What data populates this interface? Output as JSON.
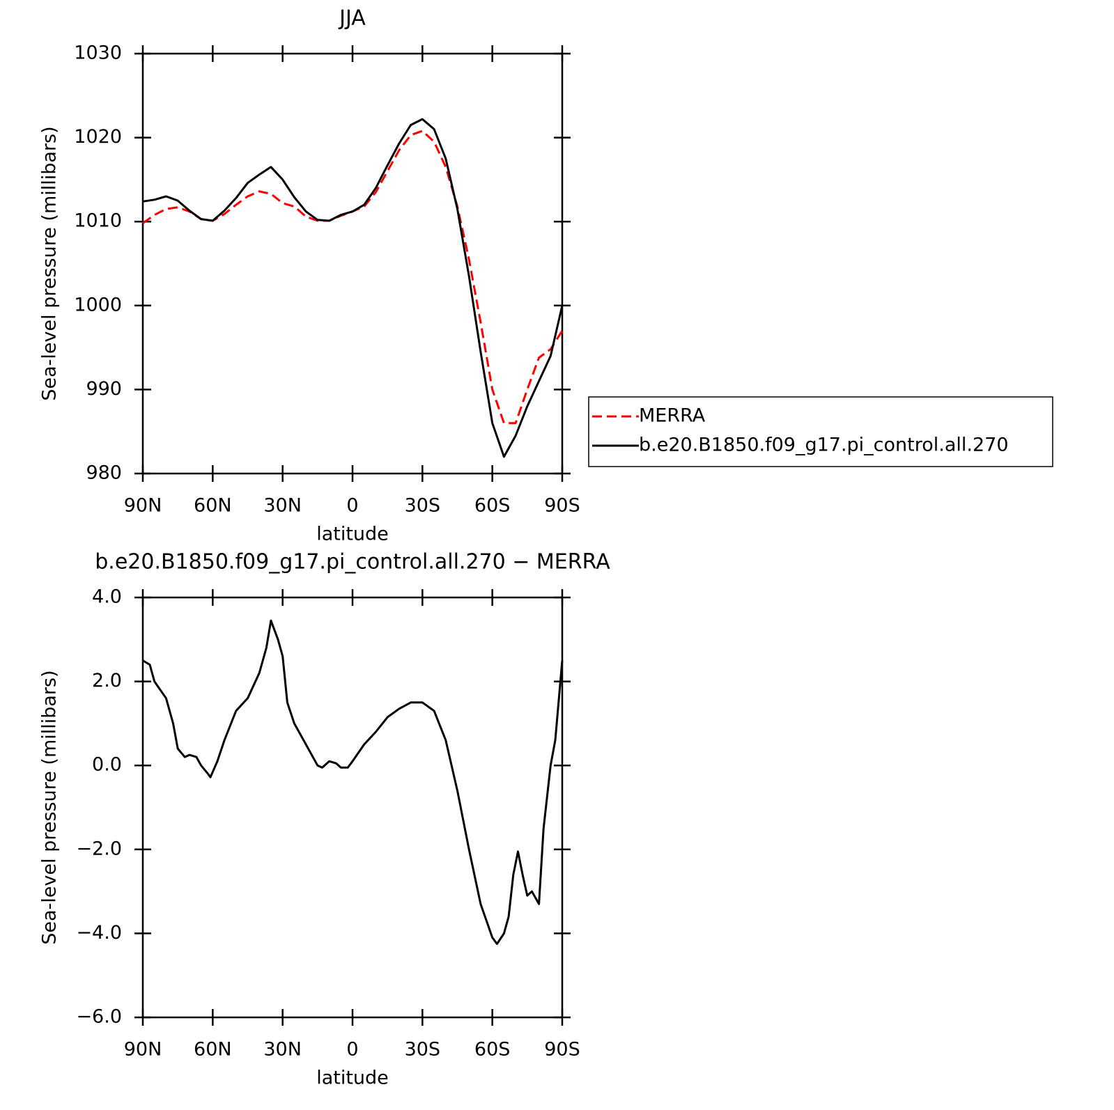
{
  "chart_data": [
    {
      "type": "line",
      "title": "JJA",
      "xlabel": "latitude",
      "ylabel": "Sea-level pressure (millibars)",
      "x": [
        90,
        85,
        80,
        75,
        70,
        65,
        60,
        55,
        50,
        45,
        40,
        35,
        30,
        25,
        20,
        15,
        10,
        5,
        0,
        -5,
        -10,
        -15,
        -20,
        -25,
        -30,
        -35,
        -40,
        -45,
        -50,
        -55,
        -60,
        -65,
        -70,
        -75,
        -80,
        -85,
        -90
      ],
      "series": [
        {
          "name": "MERRA",
          "color": "#ff0000",
          "dashed": true,
          "values": [
            1009.8,
            1010.8,
            1011.5,
            1011.7,
            1011.2,
            1010.3,
            1010.1,
            1010.9,
            1012.0,
            1013.0,
            1013.6,
            1013.3,
            1012.2,
            1011.8,
            1010.6,
            1010.1,
            1010.1,
            1010.7,
            1011.2,
            1011.8,
            1013.5,
            1016.0,
            1018.5,
            1020.3,
            1020.8,
            1019.5,
            1016.5,
            1011.8,
            1005.5,
            998.0,
            990.0,
            986.0,
            986.0,
            990.0,
            993.8,
            994.8,
            997.0
          ]
        },
        {
          "name": "b.e20.B1850.f09_g17.pi_control.all.270",
          "color": "#000000",
          "dashed": false,
          "values": [
            1012.4,
            1012.6,
            1013.0,
            1012.5,
            1011.3,
            1010.3,
            1010.1,
            1011.3,
            1012.8,
            1014.6,
            1015.6,
            1016.5,
            1015.0,
            1012.9,
            1011.2,
            1010.2,
            1010.1,
            1010.8,
            1011.2,
            1012.0,
            1014.0,
            1016.7,
            1019.3,
            1021.5,
            1022.2,
            1021.0,
            1017.5,
            1011.5,
            1003.5,
            994.5,
            986.0,
            982.0,
            984.5,
            988.0,
            991.0,
            994.0,
            1000.0
          ]
        }
      ],
      "xlim": [
        90,
        -90
      ],
      "xticks": [
        {
          "value": 90,
          "label": "90N"
        },
        {
          "value": 60,
          "label": "60N"
        },
        {
          "value": 30,
          "label": "30N"
        },
        0,
        {
          "value": -30,
          "label": "30S"
        },
        {
          "value": -60,
          "label": "60S"
        },
        {
          "value": -90,
          "label": "90S"
        }
      ],
      "ylim": [
        980,
        1030
      ],
      "yticks": [
        980,
        990,
        1000,
        1010,
        1020,
        1030
      ]
    },
    {
      "type": "line",
      "title": "b.e20.B1850.f09_g17.pi_control.all.270 − MERRA",
      "xlabel": "latitude",
      "ylabel": "Sea-level pressure (millibars)",
      "x": [
        90,
        87,
        85,
        80,
        77,
        75,
        72,
        70,
        67,
        65,
        62,
        61,
        58,
        55,
        50,
        45,
        40,
        37,
        35,
        32,
        30,
        28,
        25,
        20,
        15,
        13,
        10,
        7,
        5,
        2,
        0,
        -5,
        -10,
        -15,
        -20,
        -25,
        -30,
        -35,
        -40,
        -45,
        -50,
        -55,
        -60,
        -62,
        -65,
        -67,
        -69,
        -71,
        -73,
        -75,
        -77,
        -80,
        -82,
        -85,
        -87,
        -90
      ],
      "values": [
        2.5,
        2.4,
        2.0,
        1.6,
        1.0,
        0.4,
        0.2,
        0.25,
        0.2,
        0.0,
        -0.2,
        -0.28,
        0.1,
        0.6,
        1.3,
        1.6,
        2.2,
        2.8,
        3.45,
        3.0,
        2.6,
        1.5,
        1.0,
        0.5,
        0.0,
        -0.05,
        0.1,
        0.05,
        -0.05,
        -0.05,
        0.1,
        0.5,
        0.8,
        1.15,
        1.35,
        1.5,
        1.5,
        1.3,
        0.6,
        -0.6,
        -2.0,
        -3.3,
        -4.1,
        -4.25,
        -4.0,
        -3.6,
        -2.6,
        -2.05,
        -2.6,
        -3.1,
        -3.0,
        -3.3,
        -1.5,
        0.0,
        0.6,
        2.5
      ],
      "color": "#000000",
      "xlim": [
        90,
        -90
      ],
      "xticks": [
        {
          "value": 90,
          "label": "90N"
        },
        {
          "value": 60,
          "label": "60N"
        },
        {
          "value": 30,
          "label": "30N"
        },
        0,
        {
          "value": -30,
          "label": "30S"
        },
        {
          "value": -60,
          "label": "60S"
        },
        {
          "value": -90,
          "label": "90S"
        }
      ],
      "ylim": [
        -6,
        4
      ],
      "yticks": [
        {
          "value": -6,
          "label": "−6.0"
        },
        {
          "value": -4,
          "label": "−4.0"
        },
        {
          "value": -2,
          "label": "−2.0"
        },
        {
          "value": 0,
          "label": "0.0"
        },
        {
          "value": 2,
          "label": "2.0"
        },
        {
          "value": 4,
          "label": "4.0"
        }
      ]
    }
  ]
}
